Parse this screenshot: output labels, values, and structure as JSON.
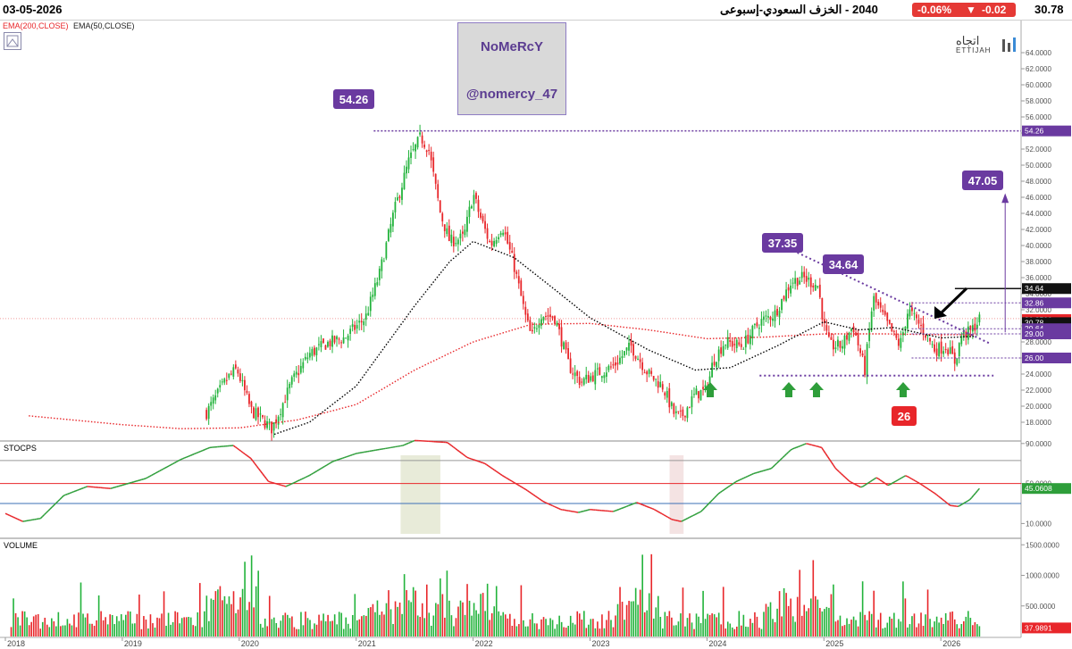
{
  "header": {
    "date": "03-05-2026",
    "symbol_name": "2040 - الخزف السعودي-إسبوعى",
    "change_percent": "-0.06%",
    "change_value": "-0.02",
    "last_price": "30.78"
  },
  "indicators": {
    "ema200_label": "EMA(200,CLOSE)",
    "ema50_label": "EMA(50,CLOSE)",
    "stoch_label": "STOCPS",
    "volume_label": "VOLUME"
  },
  "watermark": {
    "line1": "NoMeRcY",
    "line2": "@nomercy_47"
  },
  "logo": {
    "arabic": "اتجاه",
    "english": "ETTIJAH"
  },
  "colors": {
    "up": "#22b33b",
    "down": "#e8262a",
    "ema200": "#e8262a",
    "ema50": "#000000",
    "annotation": "#6a3aa0",
    "arrow_up": "#2e9e3a",
    "stoch": "#2e9e3a"
  },
  "chart_data": [
    {
      "type": "candlestick",
      "title": "",
      "x_axis": {
        "labels": [
          "2018",
          "2019",
          "2020",
          "2021",
          "2022",
          "2023",
          "2024",
          "2025",
          "2026"
        ]
      },
      "y_axis": {
        "range": [
          16,
          65
        ],
        "ticks": [
          "64.0000",
          "62.0000",
          "60.0000",
          "58.0000",
          "56.0000",
          "54.0000",
          "52.0000",
          "50.0000",
          "48.0000",
          "46.0000",
          "44.0000",
          "42.0000",
          "40.0000",
          "38.0000",
          "36.0000",
          "34.0000",
          "32.0000",
          "30.0000",
          "28.0000",
          "26.0000",
          "24.0000",
          "22.0000",
          "20.0000",
          "18.0000"
        ]
      },
      "price_keypoints": [
        {
          "t": 2019.72,
          "v": 19.2
        },
        {
          "t": 2019.9,
          "v": 23.5
        },
        {
          "t": 2019.98,
          "v": 24.6
        },
        {
          "t": 2020.1,
          "v": 19.5
        },
        {
          "t": 2020.28,
          "v": 17.2
        },
        {
          "t": 2020.45,
          "v": 23.0
        },
        {
          "t": 2020.6,
          "v": 26.5
        },
        {
          "t": 2020.75,
          "v": 27.8
        },
        {
          "t": 2020.9,
          "v": 28.5
        },
        {
          "t": 2021.08,
          "v": 31.0
        },
        {
          "t": 2021.2,
          "v": 36.5
        },
        {
          "t": 2021.32,
          "v": 44.0
        },
        {
          "t": 2021.45,
          "v": 50.5
        },
        {
          "t": 2021.55,
          "v": 53.5
        },
        {
          "t": 2021.62,
          "v": 52.0
        },
        {
          "t": 2021.72,
          "v": 44.0
        },
        {
          "t": 2021.8,
          "v": 40.5
        },
        {
          "t": 2021.92,
          "v": 41.0
        },
        {
          "t": 2022.0,
          "v": 46.5
        },
        {
          "t": 2022.05,
          "v": 44.0
        },
        {
          "t": 2022.15,
          "v": 40.0
        },
        {
          "t": 2022.25,
          "v": 42.5
        },
        {
          "t": 2022.35,
          "v": 37.5
        },
        {
          "t": 2022.45,
          "v": 31.0
        },
        {
          "t": 2022.5,
          "v": 28.5
        },
        {
          "t": 2022.58,
          "v": 31.5
        },
        {
          "t": 2022.7,
          "v": 31.0
        },
        {
          "t": 2022.82,
          "v": 25.0
        },
        {
          "t": 2022.92,
          "v": 23.0
        },
        {
          "t": 2023.05,
          "v": 24.0
        },
        {
          "t": 2023.2,
          "v": 25.0
        },
        {
          "t": 2023.35,
          "v": 27.5
        },
        {
          "t": 2023.5,
          "v": 24.0
        },
        {
          "t": 2023.62,
          "v": 22.5
        },
        {
          "t": 2023.72,
          "v": 19.0
        },
        {
          "t": 2023.78,
          "v": 18.6
        },
        {
          "t": 2023.9,
          "v": 21.5
        },
        {
          "t": 2024.0,
          "v": 22.0
        },
        {
          "t": 2024.05,
          "v": 25.5
        },
        {
          "t": 2024.15,
          "v": 28.0
        },
        {
          "t": 2024.3,
          "v": 27.5
        },
        {
          "t": 2024.45,
          "v": 30.5
        },
        {
          "t": 2024.58,
          "v": 31.5
        },
        {
          "t": 2024.72,
          "v": 35.5
        },
        {
          "t": 2024.82,
          "v": 36.0
        },
        {
          "t": 2024.95,
          "v": 35.0
        },
        {
          "t": 2025.0,
          "v": 30.0
        },
        {
          "t": 2025.05,
          "v": 27.5
        },
        {
          "t": 2025.15,
          "v": 27.5
        },
        {
          "t": 2025.25,
          "v": 30.0
        },
        {
          "t": 2025.35,
          "v": 24.5
        },
        {
          "t": 2025.42,
          "v": 33.5
        },
        {
          "t": 2025.55,
          "v": 30.0
        },
        {
          "t": 2025.65,
          "v": 27.5
        },
        {
          "t": 2025.72,
          "v": 32.0
        },
        {
          "t": 2025.85,
          "v": 29.5
        },
        {
          "t": 2025.95,
          "v": 27.0
        },
        {
          "t": 2026.05,
          "v": 27.5
        },
        {
          "t": 2026.12,
          "v": 25.5
        },
        {
          "t": 2026.18,
          "v": 29.0
        },
        {
          "t": 2026.25,
          "v": 29.2
        },
        {
          "t": 2026.33,
          "v": 30.78
        }
      ],
      "ema200_keypoints": [
        {
          "t": 2018.2,
          "v": 18.8
        },
        {
          "t": 2019.0,
          "v": 17.7
        },
        {
          "t": 2019.5,
          "v": 17.2
        },
        {
          "t": 2020.0,
          "v": 17.3
        },
        {
          "t": 2020.5,
          "v": 18.3
        },
        {
          "t": 2021.0,
          "v": 20.2
        },
        {
          "t": 2021.5,
          "v": 24.5
        },
        {
          "t": 2022.0,
          "v": 28.0
        },
        {
          "t": 2022.5,
          "v": 30.2
        },
        {
          "t": 2023.0,
          "v": 30.3
        },
        {
          "t": 2023.5,
          "v": 29.5
        },
        {
          "t": 2024.0,
          "v": 28.4
        },
        {
          "t": 2024.5,
          "v": 28.6
        },
        {
          "t": 2025.0,
          "v": 29.0
        },
        {
          "t": 2025.5,
          "v": 29.0
        },
        {
          "t": 2026.0,
          "v": 28.9
        },
        {
          "t": 2026.3,
          "v": 28.9
        }
      ],
      "ema50_keypoints": [
        {
          "t": 2020.3,
          "v": 16.5
        },
        {
          "t": 2020.6,
          "v": 18.0
        },
        {
          "t": 2021.0,
          "v": 22.5
        },
        {
          "t": 2021.5,
          "v": 32.5
        },
        {
          "t": 2021.8,
          "v": 38.0
        },
        {
          "t": 2022.0,
          "v": 40.5
        },
        {
          "t": 2022.35,
          "v": 38.5
        },
        {
          "t": 2022.7,
          "v": 34.5
        },
        {
          "t": 2023.0,
          "v": 31.0
        },
        {
          "t": 2023.5,
          "v": 27.0
        },
        {
          "t": 2023.9,
          "v": 24.5
        },
        {
          "t": 2024.2,
          "v": 24.8
        },
        {
          "t": 2024.6,
          "v": 27.5
        },
        {
          "t": 2025.0,
          "v": 30.5
        },
        {
          "t": 2025.3,
          "v": 29.5
        },
        {
          "t": 2025.6,
          "v": 29.8
        },
        {
          "t": 2026.0,
          "v": 28.5
        },
        {
          "t": 2026.3,
          "v": 28.7
        }
      ],
      "annotations": {
        "peak_label": "54.26",
        "high1_label": "37.35",
        "high2_label": "34.64",
        "target_label": "47.05",
        "support_label": "26",
        "price_tags": [
          {
            "value": 54.26,
            "label": "54.26",
            "color": "#6a3aa0"
          },
          {
            "value": 34.64,
            "label": "34.64",
            "color": "#111111"
          },
          {
            "value": 32.86,
            "label": "32.86",
            "color": "#6a3aa0"
          },
          {
            "value": 30.78,
            "label": "30.9500",
            "color": "#e8262a"
          },
          {
            "value": 30.4,
            "label": "30.78",
            "color": "#111111"
          },
          {
            "value": 29.64,
            "label": "29.64",
            "color": "#6a3aa0"
          },
          {
            "value": 29.0,
            "label": "29.00",
            "color": "#6a3aa0"
          },
          {
            "value": 26.0,
            "label": "26.00",
            "color": "#6a3aa0"
          }
        ]
      }
    },
    {
      "type": "line",
      "title": "STOCPS",
      "y_axis": {
        "ticks": [
          "90.0000",
          "50.0000",
          "10.0000"
        ]
      },
      "levels": [
        73,
        50,
        30
      ],
      "last_label": "45.0608",
      "keypoints": [
        {
          "t": 2018.0,
          "v": 20
        },
        {
          "t": 2018.15,
          "v": 12
        },
        {
          "t": 2018.3,
          "v": 15
        },
        {
          "t": 2018.5,
          "v": 38
        },
        {
          "t": 2018.7,
          "v": 47
        },
        {
          "t": 2018.9,
          "v": 45
        },
        {
          "t": 2019.2,
          "v": 55
        },
        {
          "t": 2019.5,
          "v": 74
        },
        {
          "t": 2019.75,
          "v": 86
        },
        {
          "t": 2019.95,
          "v": 88
        },
        {
          "t": 2020.1,
          "v": 75
        },
        {
          "t": 2020.25,
          "v": 52
        },
        {
          "t": 2020.4,
          "v": 47
        },
        {
          "t": 2020.6,
          "v": 58
        },
        {
          "t": 2020.8,
          "v": 72
        },
        {
          "t": 2021.0,
          "v": 80
        },
        {
          "t": 2021.2,
          "v": 84
        },
        {
          "t": 2021.4,
          "v": 88
        },
        {
          "t": 2021.5,
          "v": 93
        },
        {
          "t": 2021.65,
          "v": 92
        },
        {
          "t": 2021.78,
          "v": 91
        },
        {
          "t": 2021.95,
          "v": 76
        },
        {
          "t": 2022.1,
          "v": 70
        },
        {
          "t": 2022.25,
          "v": 58
        },
        {
          "t": 2022.45,
          "v": 44
        },
        {
          "t": 2022.6,
          "v": 32
        },
        {
          "t": 2022.75,
          "v": 24
        },
        {
          "t": 2022.9,
          "v": 21
        },
        {
          "t": 2023.0,
          "v": 24
        },
        {
          "t": 2023.2,
          "v": 22
        },
        {
          "t": 2023.4,
          "v": 31
        },
        {
          "t": 2023.55,
          "v": 24
        },
        {
          "t": 2023.7,
          "v": 14
        },
        {
          "t": 2023.78,
          "v": 12
        },
        {
          "t": 2023.95,
          "v": 22
        },
        {
          "t": 2024.1,
          "v": 40
        },
        {
          "t": 2024.25,
          "v": 52
        },
        {
          "t": 2024.4,
          "v": 60
        },
        {
          "t": 2024.55,
          "v": 65
        },
        {
          "t": 2024.72,
          "v": 84
        },
        {
          "t": 2024.85,
          "v": 90
        },
        {
          "t": 2024.98,
          "v": 86
        },
        {
          "t": 2025.1,
          "v": 65
        },
        {
          "t": 2025.22,
          "v": 52
        },
        {
          "t": 2025.32,
          "v": 46
        },
        {
          "t": 2025.45,
          "v": 56
        },
        {
          "t": 2025.55,
          "v": 48
        },
        {
          "t": 2025.7,
          "v": 58
        },
        {
          "t": 2025.82,
          "v": 50
        },
        {
          "t": 2025.95,
          "v": 40
        },
        {
          "t": 2026.08,
          "v": 28
        },
        {
          "t": 2026.15,
          "v": 27
        },
        {
          "t": 2026.25,
          "v": 34
        },
        {
          "t": 2026.33,
          "v": 45
        }
      ],
      "shaded_ranges": [
        {
          "from": 2021.38,
          "to": 2021.72,
          "kind": "overbought"
        },
        {
          "from": 2023.68,
          "to": 2023.8,
          "kind": "oversold"
        }
      ]
    },
    {
      "type": "bar",
      "title": "VOLUME",
      "y_axis": {
        "ticks": [
          "1500.0000",
          "1000.0000",
          "500.0000"
        ]
      },
      "last_label": "37.9891"
    }
  ]
}
